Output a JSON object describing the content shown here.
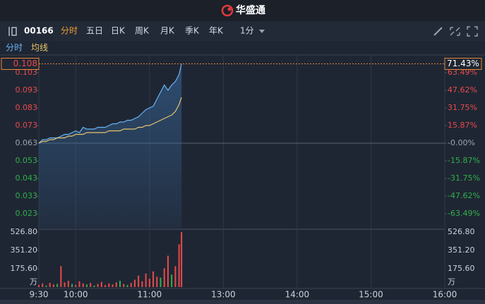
{
  "header": {
    "brand": "华盛通"
  },
  "toolbar": {
    "code": "00166",
    "tabs": [
      "分时",
      "五日",
      "日K",
      "周K",
      "月K",
      "季K",
      "年K"
    ],
    "active_tab": 0,
    "interval": "1分"
  },
  "chart_data": [
    {
      "type": "line",
      "x": [
        0,
        3,
        6,
        9,
        12,
        15,
        18,
        21,
        24,
        27,
        30,
        33,
        36,
        39,
        42,
        45,
        48,
        51,
        54,
        57,
        60,
        63,
        66,
        69,
        72,
        75,
        78,
        81,
        84,
        87,
        90,
        93,
        96,
        99,
        102,
        105,
        108,
        111,
        114,
        116
      ],
      "xlim": [
        0,
        330
      ],
      "xticks": [
        {
          "value": 0,
          "label": "9:30"
        },
        {
          "value": 30,
          "label": "10:00"
        },
        {
          "value": 90,
          "label": "11:00"
        },
        {
          "value": 150,
          "label": "13:00"
        },
        {
          "value": 210,
          "label": "14:00"
        },
        {
          "value": 270,
          "label": "15:00"
        },
        {
          "value": 330,
          "label": "16:00"
        }
      ],
      "series": [
        {
          "name": "分时",
          "color": "#6ab4f5",
          "values": [
            0.063,
            0.065,
            0.065,
            0.066,
            0.066,
            0.066,
            0.067,
            0.068,
            0.068,
            0.069,
            0.07,
            0.069,
            0.072,
            0.071,
            0.071,
            0.071,
            0.072,
            0.072,
            0.072,
            0.073,
            0.074,
            0.074,
            0.075,
            0.075,
            0.076,
            0.076,
            0.077,
            0.078,
            0.08,
            0.082,
            0.083,
            0.084,
            0.088,
            0.092,
            0.096,
            0.093,
            0.096,
            0.098,
            0.102,
            0.108
          ]
        },
        {
          "name": "均线",
          "color": "#e9c46a",
          "values": [
            0.063,
            0.064,
            0.064,
            0.065,
            0.065,
            0.066,
            0.066,
            0.066,
            0.067,
            0.067,
            0.068,
            0.068,
            0.068,
            0.069,
            0.069,
            0.069,
            0.069,
            0.069,
            0.069,
            0.07,
            0.07,
            0.07,
            0.07,
            0.071,
            0.071,
            0.071,
            0.071,
            0.072,
            0.072,
            0.073,
            0.073,
            0.074,
            0.075,
            0.076,
            0.077,
            0.078,
            0.079,
            0.081,
            0.085,
            0.089
          ]
        }
      ],
      "ylim": [
        0.015,
        0.111
      ],
      "yticks": [
        0.023,
        0.033,
        0.043,
        0.053,
        0.063,
        0.073,
        0.083,
        0.093,
        0.103
      ],
      "y2lim": [
        -76.19,
        76.19
      ],
      "y2ticks": [
        {
          "value": -63.49,
          "label": "-63.49%"
        },
        {
          "value": -47.62,
          "label": "-47.62%"
        },
        {
          "value": -31.75,
          "label": "-31.75%"
        },
        {
          "value": -15.87,
          "label": "-15.87%"
        },
        {
          "value": 0,
          "label": "-0.00%"
        },
        {
          "value": 15.87,
          "label": "15.87%"
        },
        {
          "value": 31.75,
          "label": "31.75%"
        },
        {
          "value": 47.62,
          "label": "47.62%"
        },
        {
          "value": 63.49,
          "label": "63.49%"
        }
      ],
      "base_price": 0.063,
      "last_price": 0.108,
      "last_change": {
        "value": 71.43,
        "label": "71.43%"
      },
      "up_color": "#e84a4a",
      "down_color": "#2fb14a",
      "flat_color": "#9aa3b2"
    },
    {
      "type": "bar",
      "x": [
        0,
        3,
        6,
        9,
        12,
        15,
        18,
        21,
        24,
        27,
        30,
        33,
        36,
        39,
        42,
        45,
        48,
        51,
        54,
        57,
        60,
        63,
        66,
        69,
        72,
        75,
        78,
        81,
        84,
        87,
        90,
        93,
        96,
        99,
        102,
        105,
        108,
        111,
        114,
        116
      ],
      "values": [
        20,
        35,
        15,
        40,
        25,
        30,
        200,
        45,
        60,
        30,
        20,
        55,
        35,
        25,
        40,
        15,
        30,
        50,
        20,
        35,
        25,
        45,
        60,
        30,
        20,
        40,
        70,
        110,
        55,
        130,
        80,
        150,
        100,
        90,
        180,
        300,
        120,
        200,
        410,
        526
      ],
      "colors": [
        "#e84a4a",
        "#e84a4a",
        "#2fb14a",
        "#e84a4a",
        "#e84a4a",
        "#2fb14a",
        "#e84a4a",
        "#e84a4a",
        "#e84a4a",
        "#2fb14a",
        "#e84a4a",
        "#e84a4a",
        "#e84a4a",
        "#2fb14a",
        "#e84a4a",
        "#2fb14a",
        "#e84a4a",
        "#e84a4a",
        "#e84a4a",
        "#e84a4a",
        "#e84a4a",
        "#e84a4a",
        "#2fb14a",
        "#e84a4a",
        "#2fb14a",
        "#e84a4a",
        "#e84a4a",
        "#e84a4a",
        "#e84a4a",
        "#e84a4a",
        "#e84a4a",
        "#e84a4a",
        "#e84a4a",
        "#2fb14a",
        "#e84a4a",
        "#e84a4a",
        "#2fb14a",
        "#e84a4a",
        "#e84a4a",
        "#e84a4a"
      ],
      "ylim": [
        0,
        526.8
      ],
      "yticks": [
        {
          "value": 175.6,
          "label": "175.60"
        },
        {
          "value": 351.2,
          "label": "351.20"
        },
        {
          "value": 526.8,
          "label": "526.80"
        }
      ],
      "unit": "万"
    }
  ]
}
